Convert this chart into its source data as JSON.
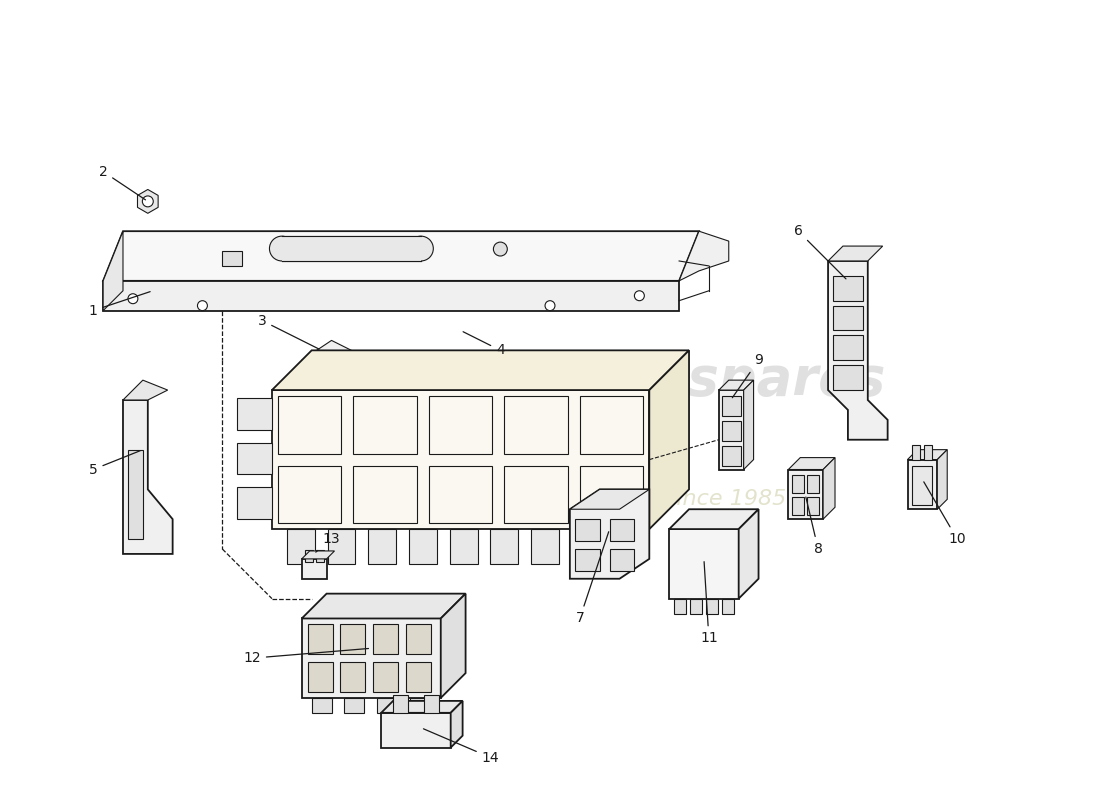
{
  "background_color": "#ffffff",
  "line_color": "#1a1a1a",
  "watermark_color1": "#d4d4d4",
  "watermark_color2": "#d8d8b8",
  "light_fill": "#faf8f0",
  "gray_fill": "#f0f0f0",
  "dark_gray": "#e0e0e0",
  "label_fontsize": 10,
  "lw_main": 1.3,
  "lw_thin": 0.8
}
